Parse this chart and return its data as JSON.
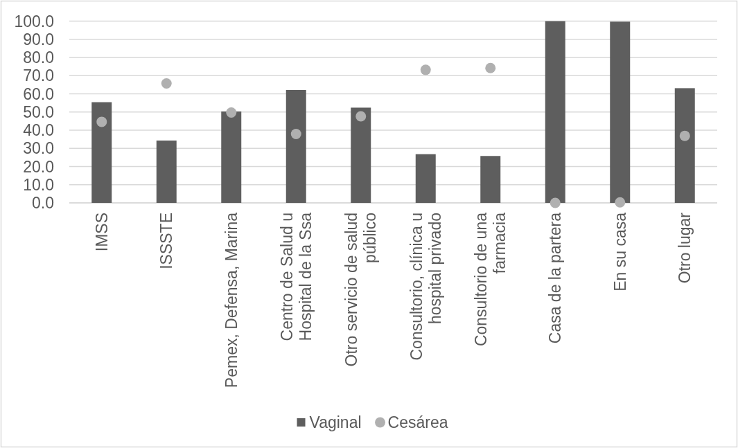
{
  "chart_data": {
    "type": "bar",
    "categories": [
      "IMSS",
      "ISSSTE",
      "Pemex, Defensa, Marina",
      "Centro de Salud u Hospital de la Ssa",
      "Otro servicio de salud público",
      "Consultorio, clínica u hospital privado",
      "Consultorio de una farmacia",
      "Casa de la partera",
      "En su casa",
      "Otro lugar"
    ],
    "series": [
      {
        "name": "Vaginal",
        "color": "#5e5e5e",
        "values": [
          55.4,
          34.3,
          50.3,
          62.1,
          52.4,
          26.8,
          25.8,
          100.0,
          99.7,
          63.1
        ]
      },
      {
        "name": "Cesárea",
        "type": "scatter",
        "color": "#b0b0b0",
        "values": [
          44.6,
          65.7,
          49.7,
          37.9,
          47.6,
          73.2,
          74.2,
          0.0,
          0.3,
          36.9
        ]
      }
    ],
    "ylim": [
      0,
      100
    ],
    "yticks": [
      {
        "value": 0,
        "label": "0.0"
      },
      {
        "value": 10,
        "label": "10.0"
      },
      {
        "value": 20,
        "label": "20.0"
      },
      {
        "value": 30,
        "label": "30.0"
      },
      {
        "value": 40,
        "label": "40.0"
      },
      {
        "value": 50,
        "label": "50.0"
      },
      {
        "value": 60,
        "label": "60.0"
      },
      {
        "value": 70,
        "label": "70.0"
      },
      {
        "value": 80,
        "label": "80.0"
      },
      {
        "value": 90,
        "label": "90.0"
      },
      {
        "value": 100,
        "label": "100.0"
      }
    ],
    "grid": "y",
    "legend": "bottom",
    "marker": "circle"
  }
}
